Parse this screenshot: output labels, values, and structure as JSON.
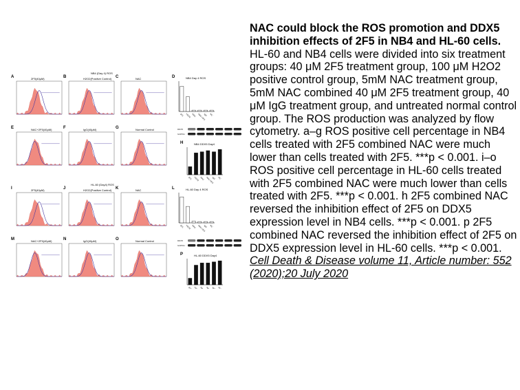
{
  "caption": {
    "title": "NAC could block the ROS promotion and DDX5 inhibition effects of 2F5 in NB4 and HL-60 cells.",
    "body": "HL-60 and NB4 cells were divided into six treatment groups: 40 μM 2F5 treatment group, 100 μM H2O2 positive control group, 5mM NAC treatment group, 5mM NAC combined 40 μM 2F5 treatment group, 40 μM IgG treatment group, and untreated normal control group. The ROS production was analyzed by flow cytometry. a–g ROS positive cell percentage in NB4 cells treated with 2F5 combined NAC were much lower than cells treated with 2F5. ***p < 0.001. i–o ROS positive cell percentage in HL-60 cells treated with 2F5 combined NAC were much lower than cells treated with 2F5. ***p < 0.001. h 2F5 combined NAC reversed the inhibition effect of 2F5 on DDX5 expression level in NB4 cells. ***p < 0.001. p 2F5 combined NAC reversed the inhibition effect of 2F5 on DDX5 expression level in HL-60 cells. ***p < 0.001.",
    "citation": "Cell Death & Disease volume 11, Article number: 552 (2020);20 July 2020"
  },
  "figure": {
    "top_group_title": "NB4 (Day 4) ROS",
    "bottom_group_title": "HL-60 (Day4) ROS",
    "panels_top": [
      {
        "letter": "A",
        "title": "2F5(40μM)"
      },
      {
        "letter": "B",
        "title": "H2O2(Positive Control)"
      },
      {
        "letter": "C",
        "title": "NAC"
      },
      {
        "letter": "E",
        "title": "NAC+2F5(40μM)"
      },
      {
        "letter": "F",
        "title": "IgG(40μM)"
      },
      {
        "letter": "G",
        "title": "Normal Control"
      }
    ],
    "panels_bottom": [
      {
        "letter": "I",
        "title": "2F5(40μM)"
      },
      {
        "letter": "J",
        "title": "H2O2(Positive Control)"
      },
      {
        "letter": "K",
        "title": "NAC"
      },
      {
        "letter": "M",
        "title": "NAC+2F5(40μM)"
      },
      {
        "letter": "N",
        "title": "IgG(40μM)"
      },
      {
        "letter": "O",
        "title": "Normal Control"
      }
    ],
    "bar_d": {
      "letter": "D",
      "title": "NB4 Day 4 ROS",
      "values": [
        58,
        34,
        3,
        3,
        3,
        3
      ]
    },
    "bar_l": {
      "letter": "L",
      "title": "HL-60 Day 4 ROS",
      "values": [
        60,
        38,
        4,
        3,
        3,
        3
      ]
    },
    "bar_h": {
      "letter": "H",
      "title": "NB4 DDX5 Day4",
      "values": [
        0.35,
        0.95,
        1.0,
        1.05,
        1.0,
        1.1
      ]
    },
    "bar_p": {
      "letter": "P",
      "title": "HL-60 DDX5 Day4",
      "values": [
        0.3,
        0.9,
        1.0,
        1.0,
        1.05,
        1.1
      ]
    },
    "categories": [
      "2F5",
      "H2O2",
      "NAC",
      "NAC+2F5",
      "IgG",
      "NC"
    ],
    "blot_labels": [
      "DDX5",
      "GAPDH"
    ]
  }
}
